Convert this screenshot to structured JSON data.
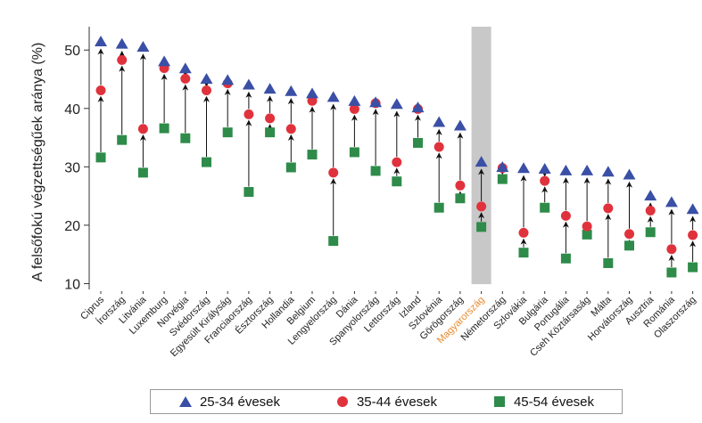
{
  "chart_data": {
    "type": "scatter",
    "title": "",
    "xlabel": "",
    "ylabel": "A felsőfokú végzettségűek aránya (%)",
    "ylim": [
      9,
      54
    ],
    "yticks": [
      10,
      20,
      30,
      40,
      50
    ],
    "grid": false,
    "legend_position": "bottom",
    "highlight_category": "Magyarország",
    "colors": {
      "series_0": "#3a4fa6",
      "series_1": "#e0323c",
      "series_2": "#2e8b4a",
      "highlight_band": "#c8c8c8",
      "highlight_label": "#e8892b",
      "arrow": "#111111"
    },
    "categories": [
      "Ciprus",
      "Írország",
      "Litvánia",
      "Luxemburg",
      "Norvégia",
      "Svédország",
      "Egyesült Királyság",
      "Franciaország",
      "Észtország",
      "Hollandia",
      "Belgium",
      "Lengyelország",
      "Dánia",
      "Spanyolország",
      "Lettország",
      "Izland",
      "Szlovénia",
      "Görögország",
      "Magyarország",
      "Németország",
      "Szlovákia",
      "Bulgária",
      "Portugália",
      "Cseh Köztársaság",
      "Málta",
      "Horvátország",
      "Ausztria",
      "Románia",
      "Olaszország"
    ],
    "series": [
      {
        "name": "25-34 évesek",
        "marker": "triangle",
        "values": [
          51.4,
          51.0,
          50.5,
          48.0,
          46.8,
          45.0,
          44.8,
          44.0,
          43.3,
          42.9,
          42.5,
          41.9,
          41.2,
          41.0,
          40.7,
          40.1,
          37.6,
          37.0,
          30.8,
          29.9,
          29.7,
          29.6,
          29.3,
          29.3,
          29.1,
          28.6,
          25.0,
          23.9,
          22.7
        ]
      },
      {
        "name": "35-44 évesek",
        "marker": "circle",
        "values": [
          43.1,
          48.3,
          36.5,
          46.9,
          45.1,
          43.1,
          44.3,
          39.0,
          38.3,
          36.5,
          41.3,
          29.0,
          39.9,
          40.9,
          30.8,
          39.9,
          33.4,
          26.8,
          23.2,
          29.8,
          18.7,
          27.6,
          21.6,
          19.8,
          22.9,
          18.5,
          22.5,
          15.9,
          18.3
        ]
      },
      {
        "name": "45-54 évesek",
        "marker": "square",
        "values": [
          31.6,
          34.6,
          29.0,
          36.6,
          34.9,
          30.8,
          35.9,
          25.7,
          35.9,
          29.9,
          32.1,
          17.3,
          32.5,
          29.3,
          27.5,
          34.1,
          23.0,
          24.6,
          19.7,
          27.9,
          15.3,
          23.0,
          14.3,
          18.4,
          13.5,
          16.5,
          18.8,
          11.9,
          12.8
        ]
      }
    ]
  }
}
